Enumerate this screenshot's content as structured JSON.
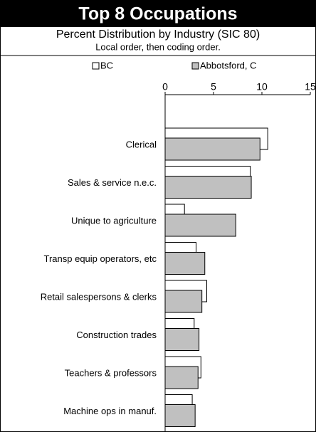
{
  "chart_data": {
    "type": "bar",
    "orientation": "horizontal",
    "title": "Top 8 Occupations",
    "subtitle": "Percent Distribution by Industry (SIC 80)",
    "note": "Local order, then coding order.",
    "categories": [
      "Clerical",
      "Sales & service  n.e.c.",
      "Unique to agriculture",
      "Transp equip operators, etc",
      "Retail salespersons & clerks",
      "Construction trades",
      "Teachers & professors",
      "Machine ops in manuf."
    ],
    "series": [
      {
        "name": "BC",
        "color": "#ffffff",
        "values": [
          10.6,
          8.8,
          2.0,
          3.2,
          4.3,
          3.0,
          3.7,
          2.8
        ]
      },
      {
        "name": "Abbotsford, C",
        "color": "#c0c0c0",
        "values": [
          9.8,
          8.9,
          7.3,
          4.1,
          3.8,
          3.5,
          3.4,
          3.1
        ]
      }
    ],
    "xlim": [
      0,
      15
    ],
    "xticks": [
      0,
      5,
      10,
      15
    ]
  }
}
